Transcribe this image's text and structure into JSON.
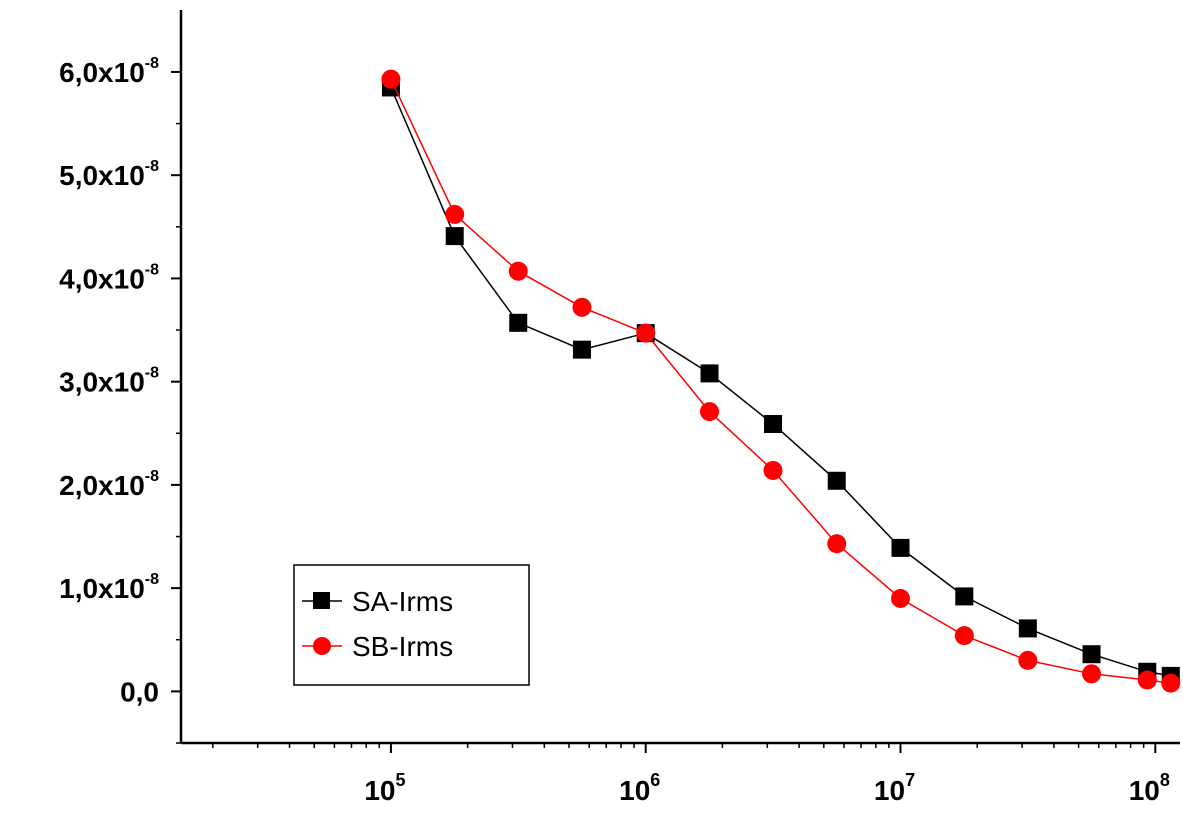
{
  "chart_data": {
    "type": "line",
    "xscale": "log",
    "xlim": [
      15000,
      125000000
    ],
    "ylim": [
      -5e-09,
      6.6e-08
    ],
    "x_ticks": [
      {
        "value": 100000,
        "base": "10",
        "exp": "5"
      },
      {
        "value": 1000000,
        "base": "10",
        "exp": "6"
      },
      {
        "value": 10000000,
        "base": "10",
        "exp": "7"
      },
      {
        "value": 100000000,
        "base": "10",
        "exp": "8"
      }
    ],
    "y_ticks": [
      {
        "value": 0,
        "mant": "0,0",
        "exp": ""
      },
      {
        "value": 1e-08,
        "mant": "1,0x10",
        "exp": "-8"
      },
      {
        "value": 2e-08,
        "mant": "2,0x10",
        "exp": "-8"
      },
      {
        "value": 3e-08,
        "mant": "3,0x10",
        "exp": "-8"
      },
      {
        "value": 4e-08,
        "mant": "4,0x10",
        "exp": "-8"
      },
      {
        "value": 5e-08,
        "mant": "5,0x10",
        "exp": "-8"
      },
      {
        "value": 6e-08,
        "mant": "6,0x10",
        "exp": "-8"
      }
    ],
    "legend": {
      "placement": "bottom-left"
    },
    "series": [
      {
        "name": "SA-Irms",
        "color": "#000000",
        "marker": "square",
        "points": [
          [
            100000,
            5.85e-08
          ],
          [
            178000,
            4.41e-08
          ],
          [
            316000,
            3.57e-08
          ],
          [
            562000,
            3.31e-08
          ],
          [
            1000000,
            3.47e-08
          ],
          [
            1780000,
            3.08e-08
          ],
          [
            3160000,
            2.59e-08
          ],
          [
            5620000,
            2.04e-08
          ],
          [
            10000000,
            1.39e-08
          ],
          [
            17800000,
            9.2e-09
          ],
          [
            31600000,
            6.1e-09
          ],
          [
            56200000,
            3.6e-09
          ],
          [
            93000000,
            1.9e-09
          ],
          [
            115000000,
            1.5e-09
          ]
        ]
      },
      {
        "name": "SB-Irms",
        "color": "#ff0000",
        "marker": "circle",
        "points": [
          [
            100000,
            5.93e-08
          ],
          [
            178000,
            4.62e-08
          ],
          [
            316000,
            4.07e-08
          ],
          [
            562000,
            3.72e-08
          ],
          [
            1000000,
            3.47e-08
          ],
          [
            1780000,
            2.71e-08
          ],
          [
            3160000,
            2.14e-08
          ],
          [
            5620000,
            1.43e-08
          ],
          [
            10000000,
            9e-09
          ],
          [
            17800000,
            5.4e-09
          ],
          [
            31600000,
            3e-09
          ],
          [
            56200000,
            1.7e-09
          ],
          [
            93000000,
            1.1e-09
          ],
          [
            115000000,
            8e-10
          ]
        ]
      }
    ]
  }
}
